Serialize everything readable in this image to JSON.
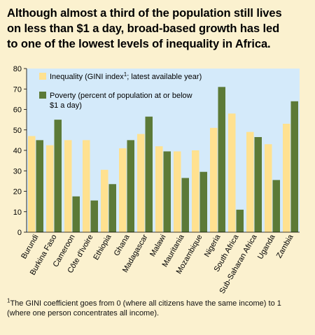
{
  "title_lines": [
    "Although almost a third of the population still lives",
    "on less than $1 a day, broad-based growth has led",
    "to one of the lowest levels of inequality in Africa."
  ],
  "footnote": {
    "marker": "1",
    "line1": "The GINI coefficient goes from 0 (where all citizens have the same income) to 1",
    "line2": "(where one person concentrates all income)."
  },
  "colors": {
    "background": "#fbf1cf",
    "plot_background": "#d4eafa",
    "inequality": "#ffe190",
    "poverty": "#5c7a37"
  },
  "chart_data": {
    "type": "bar",
    "title": "",
    "xlabel": "",
    "ylabel": "",
    "ylim": [
      0,
      80
    ],
    "yticks": [
      0,
      10,
      20,
      30,
      40,
      50,
      60,
      70,
      80
    ],
    "grid": false,
    "legend_position": "top-left",
    "categories": [
      "Burundi",
      "Burkina Faso",
      "Cameroon",
      "Côte d'Ivoire",
      "Ethiopia",
      "Ghana",
      "Madagascar",
      "Malawi",
      "Mauritania",
      "Mozambique",
      "Nigeria",
      "South Africa",
      "Sub-Saharan Africa",
      "Uganda",
      "Zambia"
    ],
    "series": [
      {
        "name": "Inequality (GINI index¹; latest available year)",
        "legend_lines": [
          "Inequality (GINI index",
          "1",
          "; latest available year)"
        ],
        "color": "#ffe190",
        "values": [
          47,
          42.5,
          45,
          45,
          30.5,
          41,
          48,
          42,
          39.5,
          40,
          51,
          58,
          49,
          43,
          53
        ]
      },
      {
        "name": "Poverty (percent of population at or below $1 a day)",
        "legend_lines": [
          "Poverty (percent of population at or below",
          "$1 a day)"
        ],
        "color": "#5c7a37",
        "values": [
          45,
          55,
          17.5,
          15.5,
          23.5,
          45,
          56.5,
          39.5,
          26.5,
          29.5,
          71,
          11,
          46.5,
          25.5,
          64
        ]
      }
    ]
  }
}
